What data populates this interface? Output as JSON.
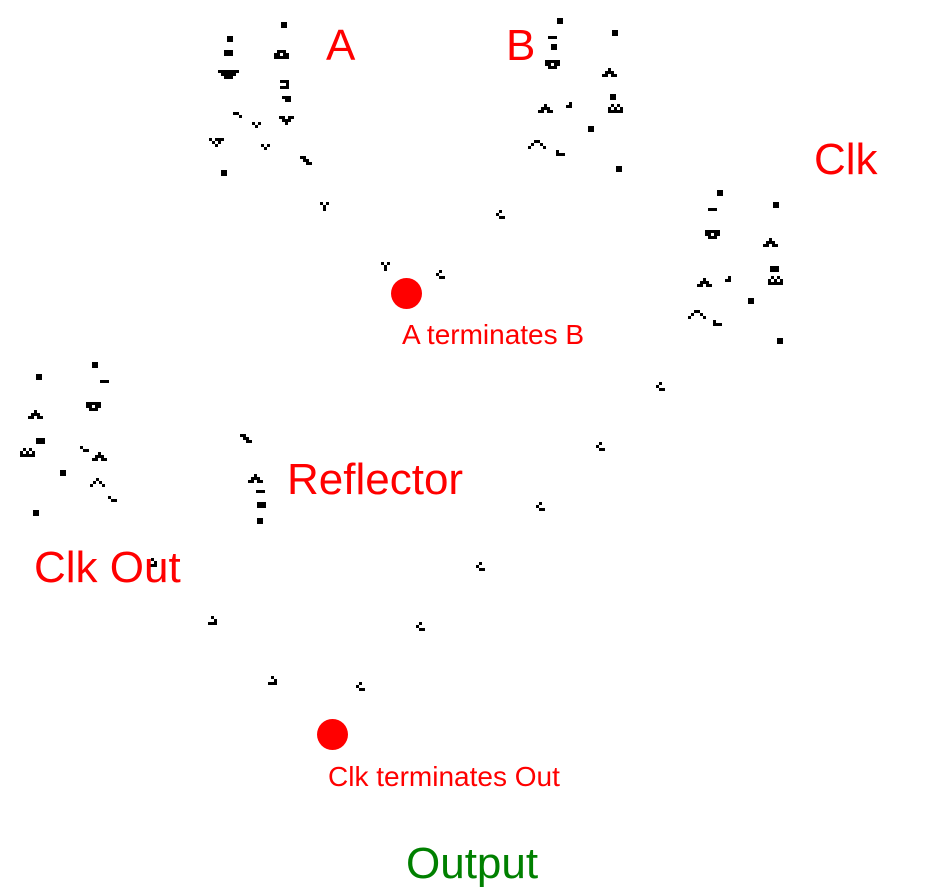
{
  "labels": {
    "a": "A",
    "b": "B",
    "clk": "Clk",
    "a_terminates_b": "A terminates B",
    "reflector": "Reflector",
    "clk_out": "Clk Out",
    "clk_terminates_out": "Clk terminates Out",
    "output": "Output"
  },
  "colors": {
    "label": "#ff0000",
    "dot": "#ff0000",
    "output": "#008000",
    "cells": "#000000"
  },
  "icons": {
    "glider": "glider-icon",
    "gun": "glider-gun-icon",
    "reflector": "reflector-icon",
    "marker": "collision-point-marker"
  }
}
